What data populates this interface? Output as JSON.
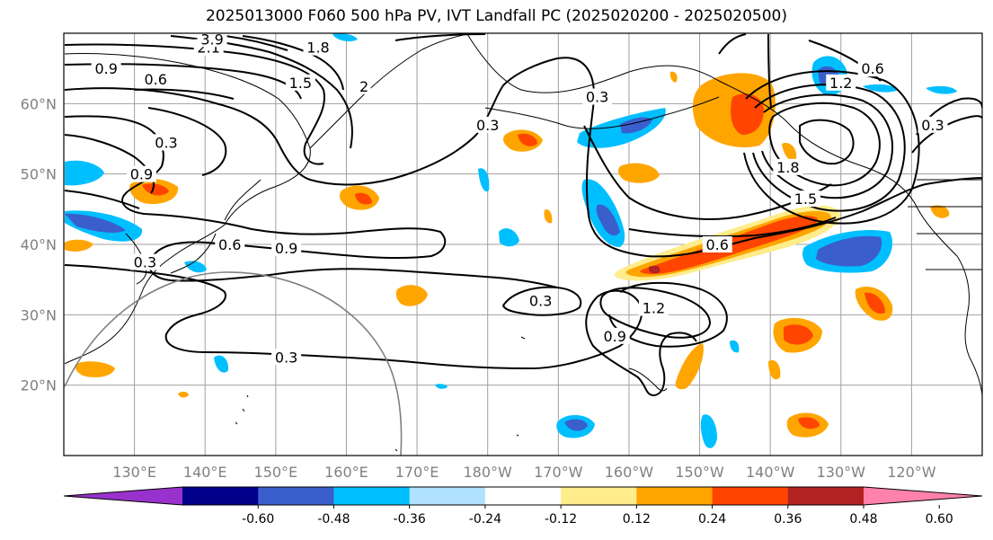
{
  "title": "2025013000 F060 500 hPa PV, IVT Landfall PC (2025020200 - 2025020500)",
  "map": {
    "projection": "PlateCarree",
    "extent_lon": [
      120,
      250
    ],
    "extent_lat": [
      10,
      70
    ],
    "grid_lines": true,
    "lon_ticks": [
      {
        "lon": 130,
        "label": "130°E"
      },
      {
        "lon": 140,
        "label": "140°E"
      },
      {
        "lon": 150,
        "label": "150°E"
      },
      {
        "lon": 160,
        "label": "160°E"
      },
      {
        "lon": 170,
        "label": "170°E"
      },
      {
        "lon": 180,
        "label": "180°W"
      },
      {
        "lon": 190,
        "label": "170°W"
      },
      {
        "lon": 200,
        "label": "160°W"
      },
      {
        "lon": 210,
        "label": "150°W"
      },
      {
        "lon": 220,
        "label": "140°W"
      },
      {
        "lon": 230,
        "label": "130°W"
      },
      {
        "lon": 240,
        "label": "120°W"
      }
    ],
    "lat_ticks": [
      {
        "lat": 20,
        "label": "20°N"
      },
      {
        "lat": 30,
        "label": "30°N"
      },
      {
        "lat": 40,
        "label": "40°N"
      },
      {
        "lat": 50,
        "label": "50°N"
      },
      {
        "lat": 60,
        "label": "60°N"
      }
    ]
  },
  "contour_labels": [
    {
      "text": "0.9",
      "lon": 126.0,
      "lat": 65.0
    },
    {
      "text": "0.6",
      "lon": 133.0,
      "lat": 63.5
    },
    {
      "text": "2.1",
      "lon": 140.5,
      "lat": 68.0
    },
    {
      "text": "3.9",
      "lon": 141.0,
      "lat": 69.2
    },
    {
      "text": "1.8",
      "lon": 156.0,
      "lat": 68.0
    },
    {
      "text": "1.5",
      "lon": 153.5,
      "lat": 63.0
    },
    {
      "text": "2",
      "lon": 162.5,
      "lat": 62.5
    },
    {
      "text": "0.3",
      "lon": 180.0,
      "lat": 57.0
    },
    {
      "text": "0.3",
      "lon": 134.5,
      "lat": 54.5
    },
    {
      "text": "0.9",
      "lon": 131.0,
      "lat": 50.0
    },
    {
      "text": "0.3",
      "lon": 195.5,
      "lat": 61.0
    },
    {
      "text": "1.2",
      "lon": 230.0,
      "lat": 63.0
    },
    {
      "text": "0.6",
      "lon": 234.5,
      "lat": 65.0
    },
    {
      "text": "0.3",
      "lon": 243.0,
      "lat": 57.0
    },
    {
      "text": "1.8",
      "lon": 222.5,
      "lat": 51.0
    },
    {
      "text": "1.5",
      "lon": 225.0,
      "lat": 46.5
    },
    {
      "text": "0.6",
      "lon": 143.5,
      "lat": 40.0
    },
    {
      "text": "0.9",
      "lon": 151.5,
      "lat": 39.5
    },
    {
      "text": "0.3",
      "lon": 131.5,
      "lat": 37.5
    },
    {
      "text": "0.6",
      "lon": 212.5,
      "lat": 40.0
    },
    {
      "text": "0.3",
      "lon": 187.5,
      "lat": 32.0
    },
    {
      "text": "1.2",
      "lon": 203.5,
      "lat": 31.0
    },
    {
      "text": "0.9",
      "lon": 198.0,
      "lat": 27.0
    },
    {
      "text": "0.3",
      "lon": 151.5,
      "lat": 24.0
    }
  ],
  "colorbar": {
    "colors": [
      "#9932cc",
      "#00008b",
      "#3a5fcd",
      "#00bfff",
      "#b0e2ff",
      "#ffffff",
      "#ffec8b",
      "#ffa500",
      "#ff4500",
      "#b22222",
      "#ff82ab"
    ],
    "ticks": [
      "-0.60",
      "-0.48",
      "-0.36",
      "-0.24",
      "-0.12",
      "0.12",
      "0.24",
      "0.36",
      "0.48",
      "0.60"
    ]
  },
  "colors": {
    "contour": "#000000",
    "grid": "#a0a0a0",
    "ring": "#808080"
  }
}
